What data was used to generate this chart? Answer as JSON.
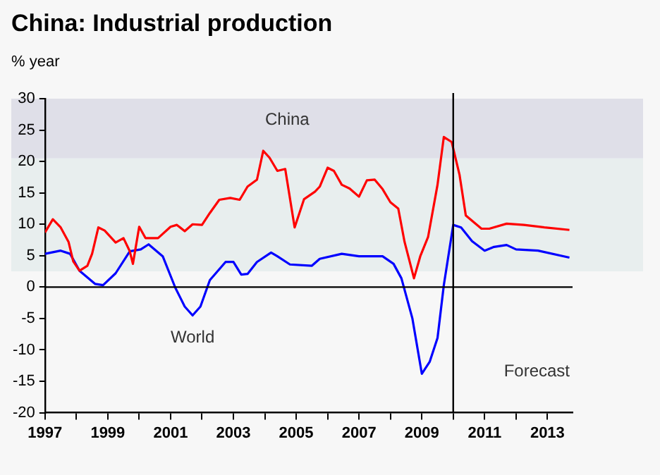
{
  "chart_data": {
    "type": "line",
    "title": "China: Industrial production",
    "ylabel": "% year",
    "xlim": [
      1997,
      2013.8
    ],
    "xticks": [
      1997,
      {
        "value": 1998,
        "label": null
      },
      1999,
      {
        "value": 2000,
        "label": null
      },
      2001,
      {
        "value": 2002,
        "label": null
      },
      2003,
      {
        "value": 2004,
        "label": null
      },
      2005,
      {
        "value": 2006,
        "label": null
      },
      2007,
      {
        "value": 2008,
        "label": null
      },
      2009,
      {
        "value": 2010,
        "label": null
      },
      2011,
      {
        "value": 2012,
        "label": null
      },
      2013
    ],
    "ylim": [
      -20,
      30
    ],
    "yticks": [
      -20,
      -15,
      -10,
      -5,
      0,
      5,
      10,
      15,
      20,
      25,
      30
    ],
    "grid": false,
    "legend": false,
    "series": [
      {
        "name": "China",
        "color": "#ff0000",
        "x": [
          1997.0,
          1997.25,
          1997.5,
          1997.75,
          1997.9,
          1998.1,
          1998.35,
          1998.5,
          1998.7,
          1998.9,
          1999.25,
          1999.5,
          1999.7,
          1999.8,
          2000.0,
          2000.2,
          2000.6,
          2001.0,
          2001.2,
          2001.45,
          2001.7,
          2002.0,
          2002.25,
          2002.55,
          2002.9,
          2003.2,
          2003.45,
          2003.75,
          2003.95,
          2004.15,
          2004.4,
          2004.65,
          2004.95,
          2005.25,
          2005.6,
          2005.75,
          2006.0,
          2006.2,
          2006.45,
          2006.7,
          2007.0,
          2007.25,
          2007.5,
          2007.75,
          2008.0,
          2008.25,
          2008.45,
          2008.75,
          2008.95,
          2009.2,
          2009.5,
          2009.7,
          2009.95,
          2010.2,
          2010.4,
          2010.9,
          2011.15,
          2011.7,
          2012.25,
          2012.9,
          2013.7
        ],
        "values": [
          8.7,
          10.8,
          9.5,
          7.2,
          4.1,
          2.6,
          3.4,
          5.3,
          9.5,
          9.0,
          7.1,
          7.8,
          5.7,
          3.7,
          9.6,
          7.8,
          7.8,
          9.6,
          9.9,
          8.9,
          10,
          9.9,
          11.8,
          13.9,
          14.2,
          13.9,
          16,
          17.1,
          21.7,
          20.6,
          18.5,
          18.8,
          9.5,
          14,
          15.2,
          16,
          19,
          18.5,
          16.3,
          15.7,
          14.4,
          17,
          17.1,
          15.6,
          13.5,
          12.5,
          7.2,
          1.4,
          4.9,
          8,
          16.3,
          23.9,
          23.1,
          17.9,
          11.4,
          9.3,
          9.3,
          10.1,
          9.9,
          9.5,
          9.1
        ]
      },
      {
        "name": "World",
        "color": "#0000ff",
        "x": [
          1997.0,
          1997.5,
          1997.8,
          1998.1,
          1998.6,
          1998.85,
          1999.25,
          1999.7,
          2000.05,
          2000.3,
          2000.75,
          2001.15,
          2001.45,
          2001.7,
          2001.95,
          2002.25,
          2002.75,
          2003.0,
          2003.25,
          2003.45,
          2003.75,
          2004.2,
          2004.4,
          2004.8,
          2005.5,
          2005.75,
          2006.45,
          2007.0,
          2007.75,
          2008.1,
          2008.35,
          2008.7,
          2009.0,
          2009.25,
          2009.5,
          2009.7,
          2010.0,
          2010.25,
          2010.6,
          2011.0,
          2011.3,
          2011.7,
          2012.0,
          2012.7,
          2013.7
        ],
        "values": [
          5.3,
          5.8,
          5.3,
          2.6,
          0.5,
          0.3,
          2.2,
          5.7,
          6.0,
          6.8,
          4.9,
          -0.1,
          -3.1,
          -4.5,
          -3.1,
          1.1,
          4.0,
          4.0,
          2.0,
          2.1,
          4.0,
          5.5,
          4.9,
          3.6,
          3.4,
          4.5,
          5.3,
          4.9,
          4.9,
          3.7,
          1.4,
          -5.0,
          -13.8,
          -11.9,
          -8.1,
          0.3,
          9.9,
          9.5,
          7.3,
          5.8,
          6.4,
          6.7,
          6.0,
          5.8,
          4.7
        ]
      }
    ],
    "ref_lines": [
      {
        "axis": "y",
        "value": 0,
        "color": "#000000"
      },
      {
        "axis": "x",
        "value": 2010,
        "label": "Forecast",
        "color": "#000000"
      }
    ],
    "bands": [
      {
        "axis": "y",
        "from": 20.5,
        "to": 30,
        "color": "#dfdfe8"
      },
      {
        "axis": "y",
        "from": 2.5,
        "to": 20.5,
        "color": "#e8eeee"
      }
    ]
  }
}
